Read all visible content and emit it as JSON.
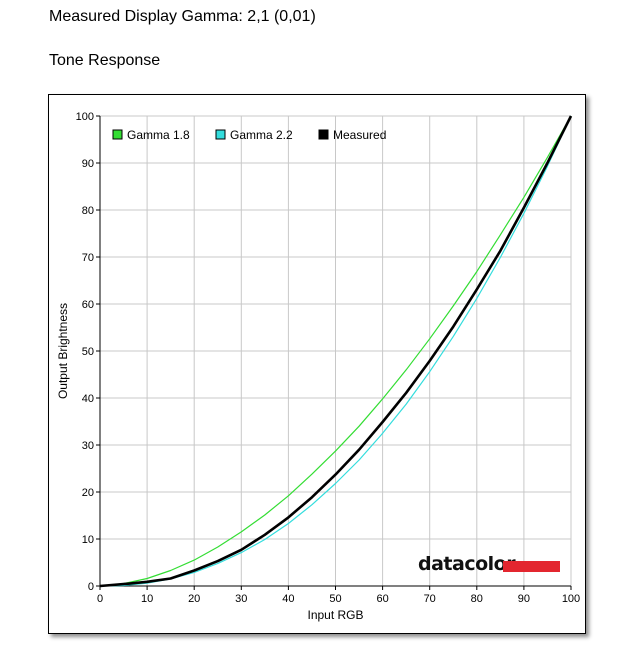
{
  "header": {
    "gamma_text": "Measured Display Gamma: 2,1 (0,01)",
    "section_title": "Tone Response"
  },
  "logo": {
    "text": "datacolor",
    "bar_color": "#e3262f"
  },
  "chart_data": {
    "type": "line",
    "xlabel": "Input RGB",
    "ylabel": "Output Brightness",
    "xlim": [
      0,
      100
    ],
    "ylim": [
      0,
      100
    ],
    "xticks": [
      0,
      10,
      20,
      30,
      40,
      50,
      60,
      70,
      80,
      90,
      100
    ],
    "yticks": [
      0,
      10,
      20,
      30,
      40,
      50,
      60,
      70,
      80,
      90,
      100
    ],
    "grid": true,
    "legend_position": "top-left",
    "series": [
      {
        "name": "Gamma 1.8",
        "color": "#33dd33",
        "x": [
          0,
          5,
          10,
          15,
          20,
          25,
          30,
          35,
          40,
          45,
          50,
          55,
          60,
          65,
          70,
          75,
          80,
          85,
          90,
          95,
          100
        ],
        "y": [
          0,
          0.5,
          1.6,
          3.3,
          5.5,
          8.3,
          11.5,
          15.1,
          19.2,
          23.8,
          28.7,
          34.0,
          39.8,
          46.0,
          52.6,
          59.6,
          66.9,
          74.7,
          82.7,
          91.2,
          100
        ]
      },
      {
        "name": "Gamma 2.2",
        "color": "#33dddd",
        "x": [
          0,
          5,
          10,
          15,
          20,
          25,
          30,
          35,
          40,
          45,
          50,
          55,
          60,
          65,
          70,
          75,
          80,
          85,
          90,
          95,
          100
        ],
        "y": [
          0,
          0.1,
          0.6,
          1.5,
          2.9,
          4.8,
          7.1,
          9.9,
          13.3,
          17.3,
          21.8,
          26.8,
          32.5,
          38.7,
          45.6,
          53.1,
          61.2,
          69.9,
          79.3,
          89.3,
          100
        ]
      },
      {
        "name": "Measured",
        "color": "#000000",
        "x": [
          0,
          5,
          10,
          15,
          20,
          25,
          30,
          35,
          40,
          45,
          50,
          55,
          60,
          65,
          70,
          75,
          80,
          85,
          90,
          95,
          100
        ],
        "y": [
          0,
          0.4,
          0.9,
          1.6,
          3.3,
          5.3,
          7.7,
          10.9,
          14.6,
          18.9,
          23.7,
          29.0,
          34.9,
          41.1,
          47.9,
          55.2,
          63.1,
          71.3,
          80.5,
          90.0,
          100
        ]
      }
    ]
  }
}
